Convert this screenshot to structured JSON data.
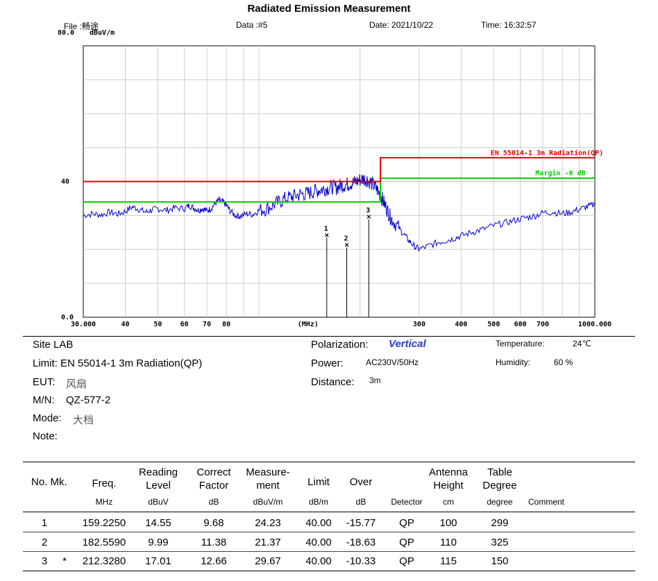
{
  "header": {
    "title": "Radiated Emission Measurement",
    "file": "File :畅途",
    "data": "Data :#5",
    "date": "Date: 2021/10/22",
    "time": "Time: 16:32:57"
  },
  "chart_data": {
    "type": "line",
    "title": "Radiated Emission Measurement",
    "ylabel": "dBuV/m",
    "xlabel": "(MHz)",
    "x_scale": "log",
    "xlim": [
      30,
      1000
    ],
    "ylim": [
      0,
      80
    ],
    "y_ticks": [
      {
        "value": 80,
        "label": "80.0"
      },
      {
        "value": 40,
        "label": "40"
      },
      {
        "value": 0,
        "label": "0.0"
      }
    ],
    "x_ticks": [
      {
        "value": 30,
        "label": "30.000"
      },
      {
        "value": 40,
        "label": "40"
      },
      {
        "value": 50,
        "label": "50"
      },
      {
        "value": 60,
        "label": "60"
      },
      {
        "value": 70,
        "label": "70"
      },
      {
        "value": 80,
        "label": "80"
      },
      {
        "value": 300,
        "label": "300"
      },
      {
        "value": 400,
        "label": "400"
      },
      {
        "value": 500,
        "label": "500"
      },
      {
        "value": 600,
        "label": "600"
      },
      {
        "value": 700,
        "label": "700"
      },
      {
        "value": 1000,
        "label": "1000.000"
      }
    ],
    "limit_line": {
      "name": "EN 55014-1 3m Radiation(QP)",
      "color": "#e00000",
      "segments": [
        {
          "x_start": 30,
          "x_end": 230,
          "y": 40
        },
        {
          "x_start": 230,
          "x_end": 1000,
          "y": 47
        }
      ]
    },
    "margin_line": {
      "name": "Margin -6 dB",
      "color": "#00cc00",
      "segments": [
        {
          "x_start": 30,
          "x_end": 230,
          "y": 34
        },
        {
          "x_start": 230,
          "x_end": 1000,
          "y": 41
        }
      ]
    },
    "spectrum": {
      "color": "#0000cc",
      "points": [
        [
          30,
          30
        ],
        [
          32,
          30.5
        ],
        [
          34,
          30.2
        ],
        [
          36,
          31
        ],
        [
          38,
          30.4
        ],
        [
          40,
          31.2
        ],
        [
          42,
          32.5
        ],
        [
          44,
          31.8
        ],
        [
          46,
          31
        ],
        [
          48,
          31.6
        ],
        [
          50,
          32
        ],
        [
          53,
          31.5
        ],
        [
          56,
          32.2
        ],
        [
          60,
          32
        ],
        [
          62,
          33
        ],
        [
          64,
          32.2
        ],
        [
          66,
          31.6
        ],
        [
          68,
          32
        ],
        [
          70,
          31.4
        ],
        [
          72,
          32
        ],
        [
          74,
          33.5
        ],
        [
          76,
          34.5
        ],
        [
          78,
          34
        ],
        [
          80,
          33
        ],
        [
          82,
          31.5
        ],
        [
          85,
          30
        ],
        [
          88,
          29.8
        ],
        [
          92,
          30.5
        ],
        [
          96,
          30.3
        ],
        [
          100,
          31.5
        ],
        [
          105,
          32
        ],
        [
          110,
          33
        ],
        [
          115,
          34
        ],
        [
          120,
          35
        ],
        [
          125,
          35.5
        ],
        [
          130,
          36
        ],
        [
          135,
          36.3
        ],
        [
          140,
          36.5
        ],
        [
          145,
          37
        ],
        [
          150,
          37.4
        ],
        [
          155,
          37.8
        ],
        [
          160,
          38
        ],
        [
          165,
          38.4
        ],
        [
          170,
          38.2
        ],
        [
          175,
          38.8
        ],
        [
          180,
          39
        ],
        [
          185,
          39.3
        ],
        [
          190,
          39.6
        ],
        [
          195,
          40
        ],
        [
          200,
          40.5
        ],
        [
          205,
          40.8
        ],
        [
          210,
          40.5
        ],
        [
          215,
          39.8
        ],
        [
          220,
          38.8
        ],
        [
          225,
          37.5
        ],
        [
          230,
          36
        ],
        [
          235,
          34
        ],
        [
          240,
          32
        ],
        [
          245,
          30
        ],
        [
          250,
          28.5
        ],
        [
          260,
          26.5
        ],
        [
          270,
          24.5
        ],
        [
          280,
          22.5
        ],
        [
          290,
          21
        ],
        [
          300,
          20
        ],
        [
          320,
          21
        ],
        [
          340,
          22
        ],
        [
          360,
          22.6
        ],
        [
          380,
          23.2
        ],
        [
          400,
          24
        ],
        [
          430,
          25
        ],
        [
          460,
          25.8
        ],
        [
          500,
          27
        ],
        [
          540,
          27.8
        ],
        [
          580,
          28.6
        ],
        [
          620,
          29.3
        ],
        [
          660,
          29.8
        ],
        [
          700,
          30.8
        ],
        [
          750,
          31
        ],
        [
          800,
          30.5
        ],
        [
          850,
          31
        ],
        [
          900,
          31.8
        ],
        [
          950,
          32.6
        ],
        [
          1000,
          33.2
        ]
      ]
    },
    "markers": [
      {
        "label": "1",
        "freq": 159.225,
        "level": 24.23
      },
      {
        "label": "2",
        "freq": 182.559,
        "level": 21.37
      },
      {
        "label": "3",
        "freq": 212.328,
        "level": 29.67
      }
    ]
  },
  "info": {
    "site": "Site LAB",
    "limit": "Limit: EN 55014-1 3m Radiation(QP)",
    "eut_label": "EUT:",
    "eut_value": "风扇",
    "mn_label": "M/N:",
    "mn_value": "QZ-577-2",
    "mode_label": "Mode:",
    "mode_value": "大档",
    "note_label": "Note:",
    "polarization_label": "Polarization:",
    "polarization_value": "Vertical",
    "power_label": "Power:",
    "power_value": "AC230V/50Hz",
    "distance_label": "Distance:",
    "distance_value": "3m",
    "temperature_label": "Temperature:",
    "temperature_value": "24℃",
    "humidity_label": "Humidity:",
    "humidity_value": "60 %"
  },
  "table": {
    "headers": {
      "no_mk": "No. Mk.",
      "freq": "Freq.",
      "reading_1": "Reading",
      "reading_2": "Level",
      "correct_1": "Correct",
      "correct_2": "Factor",
      "measure_1": "Measure-",
      "measure_2": "ment",
      "limit": "Limit",
      "over": "Over",
      "antenna_1": "Antenna",
      "antenna_2": "Height",
      "table_1": "Table",
      "table_2": "Degree"
    },
    "units": {
      "freq": "MHz",
      "reading": "dBuV",
      "correct": "dB",
      "measure": "dBuV/m",
      "limit": "dB/m",
      "over": "dB",
      "detector": "Detector",
      "antenna": "cm",
      "table": "degree",
      "comment": "Comment"
    },
    "rows": [
      {
        "no": "1",
        "mk": "",
        "freq": "159.2250",
        "reading": "14.55",
        "correct": "9.68",
        "measure": "24.23",
        "limit": "40.00",
        "over": "-15.77",
        "detector": "QP",
        "antenna": "100",
        "table": "299",
        "comment": ""
      },
      {
        "no": "2",
        "mk": "",
        "freq": "182.5590",
        "reading": "9.99",
        "correct": "11.38",
        "measure": "21.37",
        "limit": "40.00",
        "over": "-18.63",
        "detector": "QP",
        "antenna": "110",
        "table": "325",
        "comment": ""
      },
      {
        "no": "3",
        "mk": "*",
        "freq": "212.3280",
        "reading": "17.01",
        "correct": "12.66",
        "measure": "29.67",
        "limit": "40.00",
        "over": "-10.33",
        "detector": "QP",
        "antenna": "115",
        "table": "150",
        "comment": ""
      }
    ]
  }
}
